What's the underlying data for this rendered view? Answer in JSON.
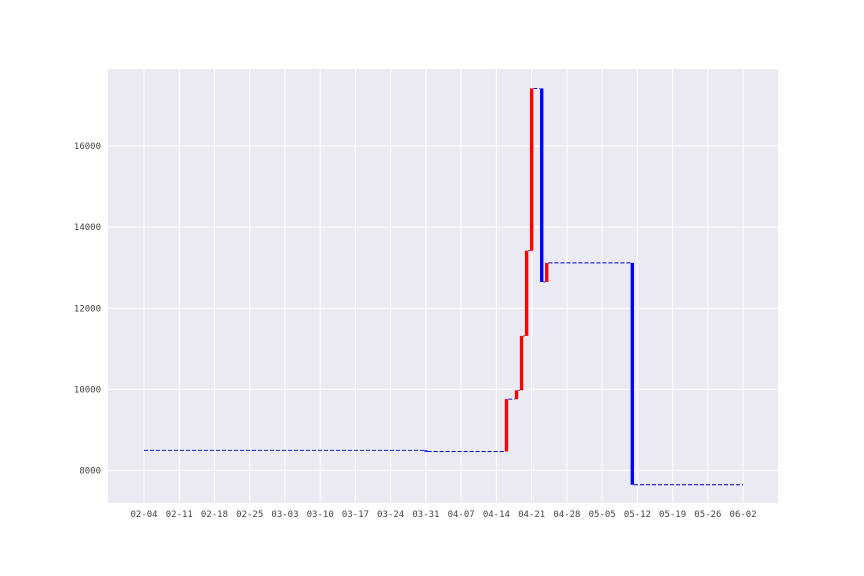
{
  "chart_data": {
    "type": "waterfall",
    "grid": true,
    "ylim": [
      7200,
      17900
    ],
    "yticks": [
      8000,
      10000,
      12000,
      14000,
      16000
    ],
    "xticks": [
      "02-04",
      "02-11",
      "02-18",
      "02-25",
      "03-03",
      "03-10",
      "03-17",
      "03-24",
      "03-31",
      "04-07",
      "04-14",
      "04-21",
      "04-28",
      "05-05",
      "05-12",
      "05-19",
      "05-26",
      "06-02"
    ],
    "connector_color": "#0000cc",
    "up_color": "#ff0000",
    "down_color": "#0000ff",
    "connector_start": {
      "date": "02-04",
      "value": 8500
    },
    "connector_end": {
      "date": "06-02",
      "value": 7650
    },
    "bars": [
      {
        "date": "03-31",
        "from": 8500,
        "to": 8470,
        "direction": "down"
      },
      {
        "date": "04-16",
        "from": 8470,
        "to": 9760,
        "direction": "up"
      },
      {
        "date": "04-18",
        "from": 9760,
        "to": 9980,
        "direction": "up"
      },
      {
        "date": "04-19",
        "from": 9980,
        "to": 11320,
        "direction": "up"
      },
      {
        "date": "04-20",
        "from": 11320,
        "to": 13420,
        "direction": "up"
      },
      {
        "date": "04-21",
        "from": 13420,
        "to": 17420,
        "direction": "up"
      },
      {
        "date": "04-23",
        "from": 17420,
        "to": 12650,
        "direction": "down"
      },
      {
        "date": "04-24",
        "from": 12650,
        "to": 13120,
        "direction": "up"
      },
      {
        "date": "05-11",
        "from": 13120,
        "to": 7650,
        "direction": "down"
      }
    ]
  }
}
